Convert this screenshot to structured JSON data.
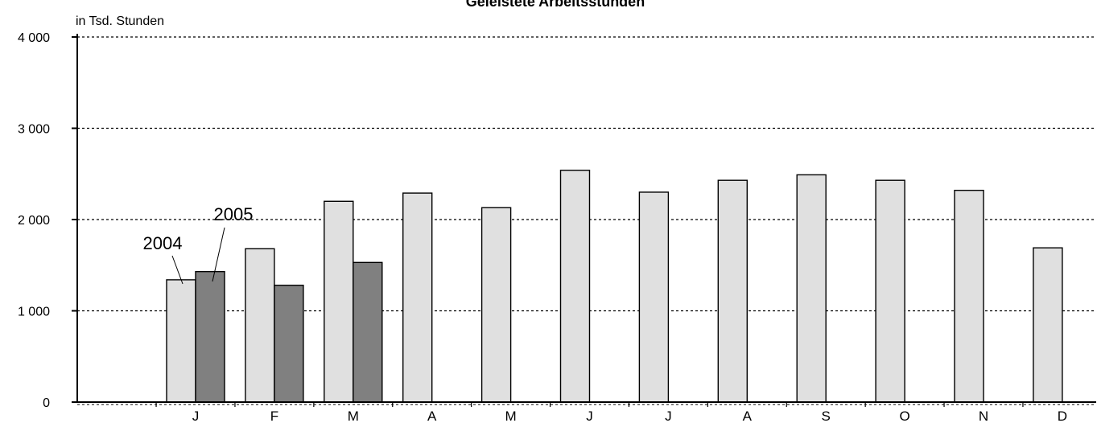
{
  "chart_data": {
    "type": "bar",
    "title": "Geleistete Arbeitsstunden",
    "unit_label": "in Tsd. Stunden",
    "xlabel": "",
    "ylabel": "",
    "ylim": [
      0,
      4000
    ],
    "yticks": [
      {
        "value": 0,
        "label": "0"
      },
      {
        "value": 1000,
        "label": "1 000"
      },
      {
        "value": 2000,
        "label": "2 000"
      },
      {
        "value": 3000,
        "label": "3 000"
      },
      {
        "value": 4000,
        "label": "4 000"
      }
    ],
    "grid": true,
    "categories": [
      "J",
      "F",
      "M",
      "A",
      "M",
      "J",
      "J",
      "A",
      "S",
      "O",
      "N",
      "D"
    ],
    "series": [
      {
        "name": "2004",
        "color": "#e0e0e0",
        "values": [
          1340,
          1680,
          2200,
          2290,
          2130,
          2540,
          2300,
          2430,
          2490,
          2430,
          2320,
          1690
        ]
      },
      {
        "name": "2005",
        "color": "#808080",
        "values": [
          1430,
          1280,
          1530,
          null,
          null,
          null,
          null,
          null,
          null,
          null,
          null,
          null
        ]
      }
    ]
  }
}
